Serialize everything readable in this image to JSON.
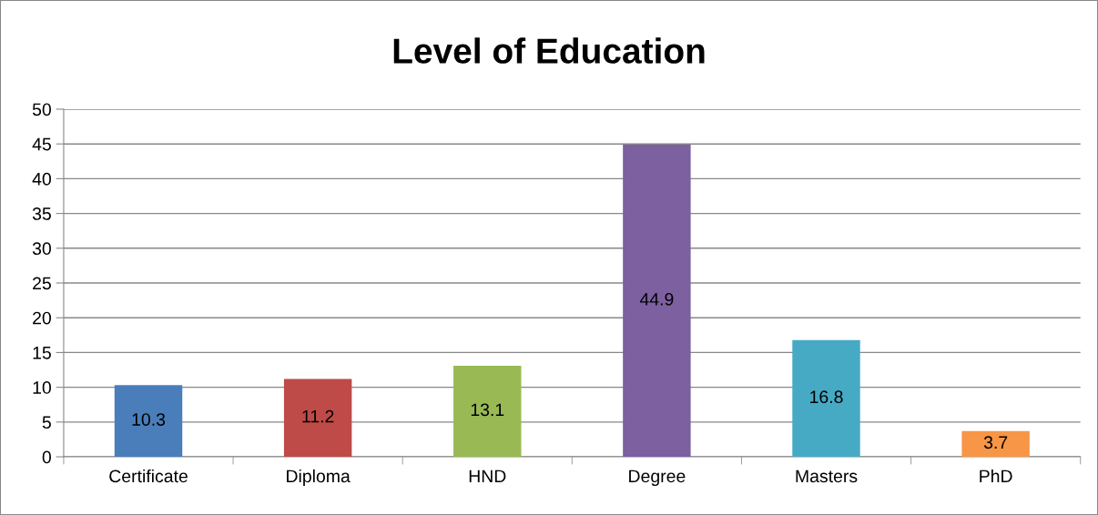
{
  "chart_data": {
    "type": "bar",
    "title": "Level of Education",
    "categories": [
      "Certificate",
      "Diploma",
      "HND",
      "Degree",
      "Masters",
      "PhD"
    ],
    "values": [
      10.3,
      11.2,
      13.1,
      44.9,
      16.8,
      3.7
    ],
    "colors": [
      "#4a7ebb",
      "#be4b48",
      "#98b954",
      "#7d60a0",
      "#46aac5",
      "#f79646"
    ],
    "ylim": [
      0,
      50
    ],
    "yticks": [
      0,
      5,
      10,
      15,
      20,
      25,
      30,
      35,
      40,
      45,
      50
    ],
    "grid": "y",
    "data_labels": true,
    "legend": false
  }
}
